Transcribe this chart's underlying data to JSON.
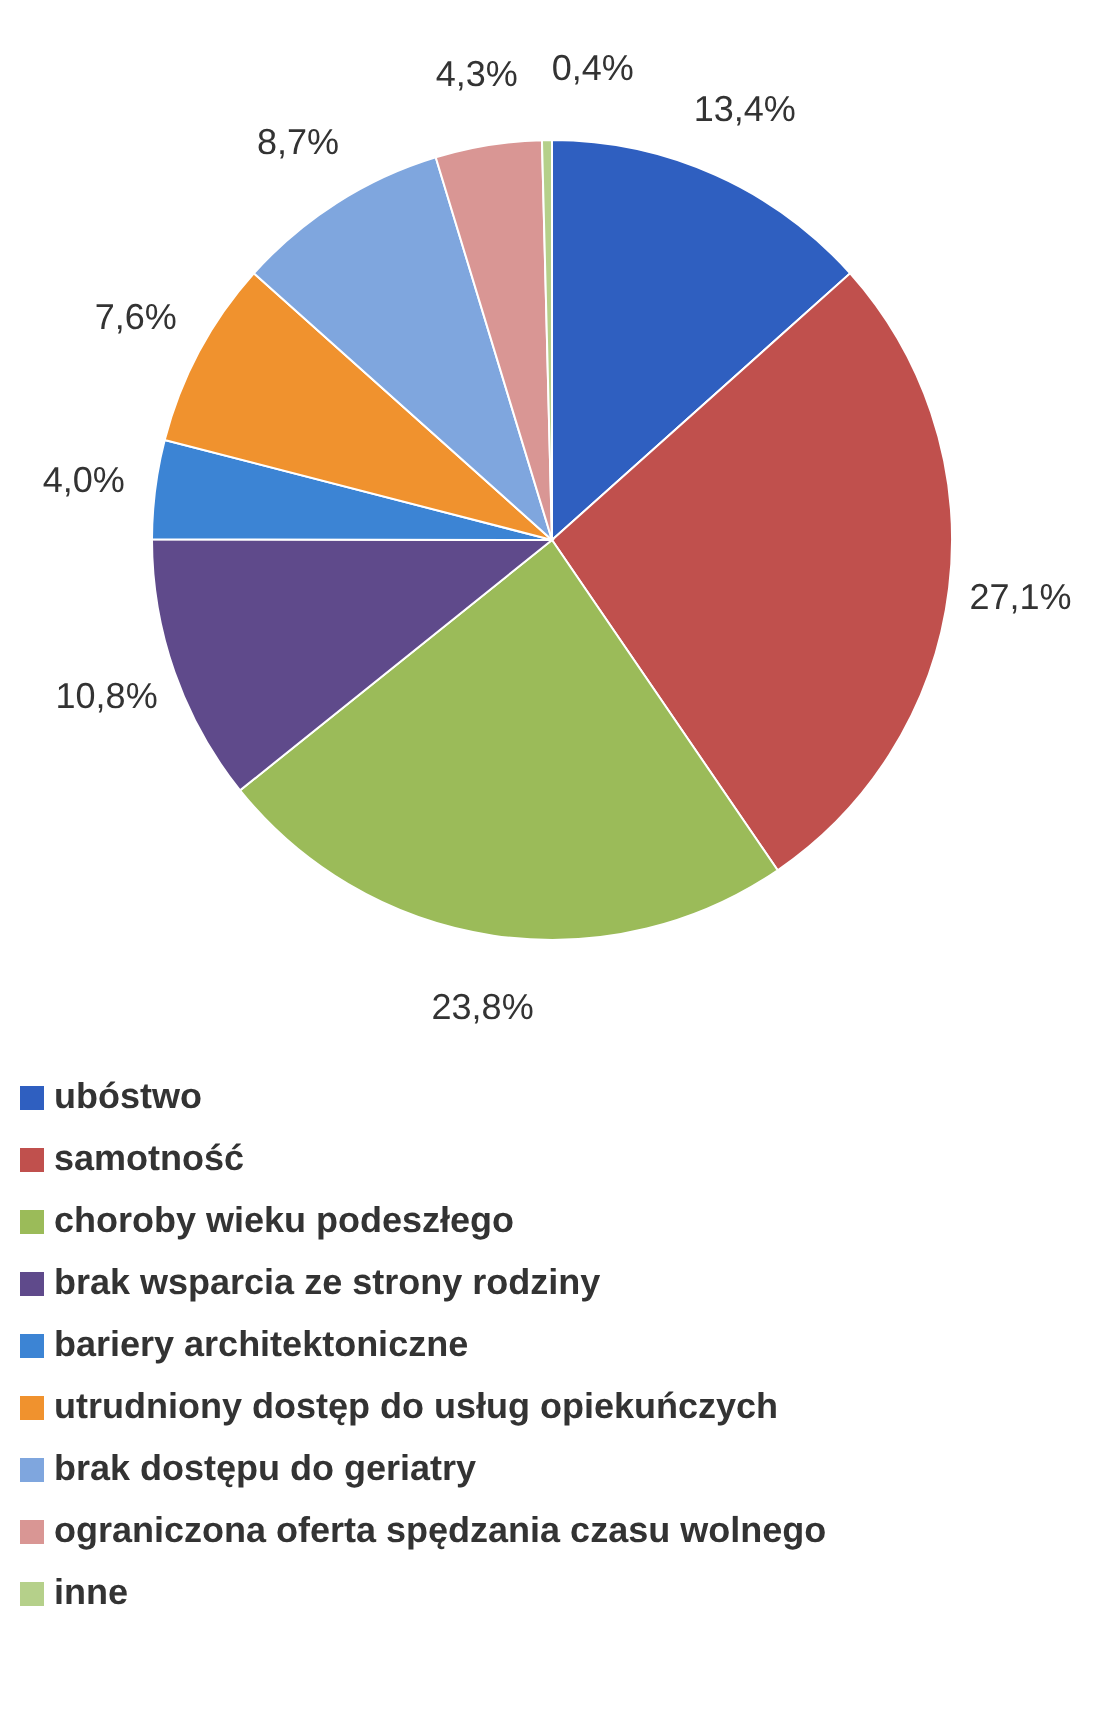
{
  "chart_data": {
    "type": "pie",
    "categories": [
      "ubóstwo",
      "samotność",
      "choroby wieku podeszłego",
      "brak wsparcia ze strony rodziny",
      "bariery architektoniczne",
      "utrudniony dostęp do usług opiekuńczych",
      "brak dostępu do geriatry",
      "ograniczona oferta spędzania czasu wolnego",
      "inne"
    ],
    "values": [
      13.4,
      27.1,
      23.8,
      10.8,
      4.0,
      7.6,
      8.7,
      4.3,
      0.4
    ],
    "value_labels": [
      "13,4%",
      "27,1%",
      "23,8%",
      "10,8%",
      "4,0%",
      "7,6%",
      "8,7%",
      "4,3%",
      "0,4%"
    ],
    "colors": [
      "#2f5fc0",
      "#c0504d",
      "#9bbb59",
      "#5f4a8b",
      "#3c84d4",
      "#f0922e",
      "#7fa6de",
      "#d99694",
      "#b5d08a"
    ],
    "legend": "bottom"
  }
}
